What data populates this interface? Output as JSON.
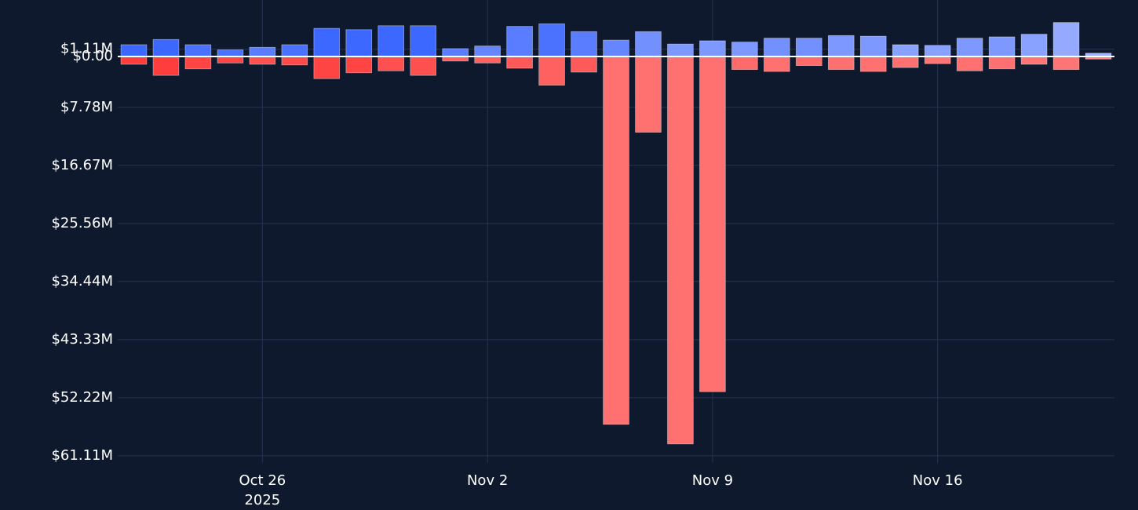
{
  "chart_data": {
    "type": "bar",
    "stacked": true,
    "x": [
      "2025-10-22",
      "2025-10-23",
      "2025-10-24",
      "2025-10-25",
      "2025-10-26",
      "2025-10-27",
      "2025-10-28",
      "2025-10-29",
      "2025-10-30",
      "2025-10-31",
      "2025-11-01",
      "2025-11-02",
      "2025-11-03",
      "2025-11-04",
      "2025-11-05",
      "2025-11-06",
      "2025-11-07",
      "2025-11-08",
      "2025-11-09",
      "2025-11-10",
      "2025-11-11",
      "2025-11-12",
      "2025-11-13",
      "2025-11-14",
      "2025-11-15",
      "2025-11-16",
      "2025-11-17",
      "2025-11-18",
      "2025-11-19",
      "2025-11-20",
      "2025-11-21"
    ],
    "series": [
      {
        "color": "#4a72ff",
        "colors": [
          "#3d68ff",
          "#3d68ff",
          "#4a72ff",
          "#4a72ff",
          "#5a7dff",
          "#4a72ff",
          "#3d68ff",
          "#3d68ff",
          "#3d68ff",
          "#3d68ff",
          "#5a7dff",
          "#6686ff",
          "#5a7dff",
          "#4a72ff",
          "#5a7dff",
          "#6686ff",
          "#7390ff",
          "#7d98ff",
          "#7d98ff",
          "#7d98ff",
          "#7390ff",
          "#7390ff",
          "#7d98ff",
          "#7d98ff",
          "#8aa2ff",
          "#8aa2ff",
          "#7d98ff",
          "#7d98ff",
          "#8aa2ff",
          "#95aaff",
          "#a0b3ff"
        ],
        "values": [
          1.8,
          2.6,
          1.8,
          1.0,
          1.4,
          1.8,
          4.3,
          4.1,
          4.7,
          4.7,
          1.2,
          1.6,
          4.6,
          5.0,
          3.8,
          2.5,
          3.8,
          1.9,
          2.4,
          2.2,
          2.8,
          2.8,
          3.2,
          3.1,
          1.8,
          1.7,
          2.8,
          3.0,
          3.4,
          5.2,
          0.5
        ]
      },
      {
        "color": "#ff4444",
        "colors": [
          "#ff3d3d",
          "#ff3d3d",
          "#ff4444",
          "#ff4444",
          "#ff5050",
          "#ff4a4a",
          "#ff4444",
          "#ff4444",
          "#ff5050",
          "#ff5050",
          "#ff6060",
          "#ff6060",
          "#ff5858",
          "#ff6060",
          "#ff5a5a",
          "#ff7070",
          "#ff7070",
          "#ff7070",
          "#ff7070",
          "#ff6a6a",
          "#ff7070",
          "#ff6a6a",
          "#ff7070",
          "#ff7070",
          "#ff7070",
          "#ff7575",
          "#ff7070",
          "#ff7070",
          "#ff7575",
          "#ff7575",
          "#ff8080"
        ],
        "values": [
          -1.2,
          -2.9,
          -1.9,
          -1.0,
          -1.2,
          -1.3,
          -3.4,
          -2.5,
          -2.2,
          -2.9,
          -0.7,
          -1.0,
          -1.8,
          -4.4,
          -2.4,
          -56.3,
          -11.6,
          -59.3,
          -51.3,
          -2.0,
          -2.3,
          -1.4,
          -2.0,
          -2.3,
          -1.7,
          -1.1,
          -2.2,
          -1.9,
          -1.2,
          -2.0,
          -0.4
        ]
      }
    ],
    "xlim": [
      "2025-10-21T12:00",
      "2025-11-21T12:00"
    ],
    "xticks": [
      {
        "value": "2025-10-26",
        "label": "Oct 26"
      },
      {
        "value": "2025-11-02",
        "label": "Nov 2"
      },
      {
        "value": "2025-11-09",
        "label": "Nov 9"
      },
      {
        "value": "2025-11-16",
        "label": "Nov 16"
      }
    ],
    "x_year_label": "2025",
    "ylim": [
      -62.2,
      8.64
    ],
    "yticks": [
      {
        "value": 1.11,
        "label": "$1.11M"
      },
      {
        "value": 0,
        "label": "$0.00"
      },
      {
        "value": -7.78,
        "label": "$7.78M"
      },
      {
        "value": -16.67,
        "label": "$16.67M"
      },
      {
        "value": -25.56,
        "label": "$25.56M"
      },
      {
        "value": -34.44,
        "label": "$34.44M"
      },
      {
        "value": -43.33,
        "label": "$43.33M"
      },
      {
        "value": -52.22,
        "label": "$52.22M"
      },
      {
        "value": -61.11,
        "label": "$61.11M"
      }
    ],
    "grid": true
  }
}
